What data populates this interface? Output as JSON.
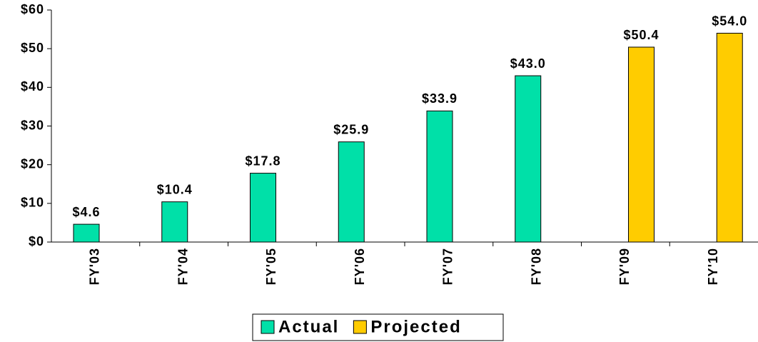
{
  "chart_data": {
    "type": "bar",
    "categories": [
      "FY'03",
      "FY'04",
      "FY'05",
      "FY'06",
      "FY'07",
      "FY'08",
      "FY'09",
      "FY'10"
    ],
    "series": [
      {
        "name": "Actual",
        "color": "#00e0a8",
        "values": [
          4.6,
          10.4,
          17.8,
          25.9,
          33.9,
          43.0,
          null,
          null
        ],
        "value_labels": [
          "$4.6",
          "$10.4",
          "$17.8",
          "$25.9",
          "$33.9",
          "$43.0",
          null,
          null
        ]
      },
      {
        "name": "Projected",
        "color": "#ffcc00",
        "values": [
          null,
          null,
          null,
          null,
          null,
          null,
          50.4,
          54.0
        ],
        "value_labels": [
          null,
          null,
          null,
          null,
          null,
          null,
          "$50.4",
          "$54.0"
        ]
      }
    ],
    "ylim": [
      0,
      60
    ],
    "yticks": [
      {
        "value": 0,
        "label": "$0"
      },
      {
        "value": 10,
        "label": "$10"
      },
      {
        "value": 20,
        "label": "$20"
      },
      {
        "value": 30,
        "label": "$30"
      },
      {
        "value": 40,
        "label": "$40"
      },
      {
        "value": 50,
        "label": "$50"
      },
      {
        "value": 60,
        "label": "$60"
      }
    ],
    "grid": false,
    "legend": "bottom"
  }
}
